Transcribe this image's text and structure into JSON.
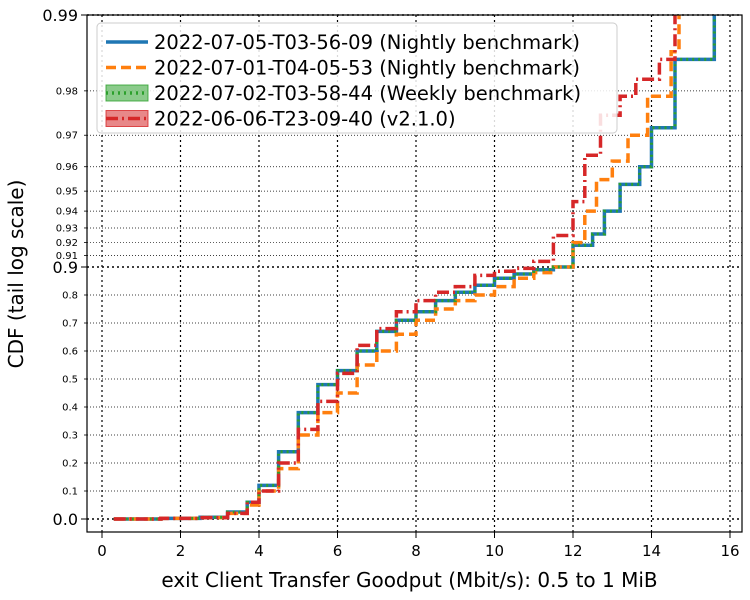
{
  "chart_data": {
    "type": "line",
    "xlabel": "exit Client Transfer Goodput (Mbit/s): 0.5 to 1 MiB",
    "ylabel": "CDF (tail log scale)",
    "xlim": [
      -0.4,
      16.1
    ],
    "x_ticks": [
      0,
      2,
      4,
      6,
      8,
      10,
      12,
      14,
      16
    ],
    "y_scale": "tail-log",
    "y_major_ticks": [
      {
        "v": 0.0,
        "label": "0.0"
      },
      {
        "v": 0.9,
        "label": "0.9"
      },
      {
        "v": 0.99,
        "label": "0.99"
      }
    ],
    "y_minor_ticks": [
      {
        "v": 0.1,
        "label": "0.1"
      },
      {
        "v": 0.2,
        "label": "0.2"
      },
      {
        "v": 0.3,
        "label": "0.3"
      },
      {
        "v": 0.4,
        "label": "0.4"
      },
      {
        "v": 0.5,
        "label": "0.5"
      },
      {
        "v": 0.6,
        "label": "0.6"
      },
      {
        "v": 0.7,
        "label": "0.7"
      },
      {
        "v": 0.8,
        "label": "0.8"
      },
      {
        "v": 0.91,
        "label": "0.91"
      },
      {
        "v": 0.92,
        "label": "0.92"
      },
      {
        "v": 0.93,
        "label": "0.93"
      },
      {
        "v": 0.94,
        "label": "0.94"
      },
      {
        "v": 0.95,
        "label": "0.95"
      },
      {
        "v": 0.96,
        "label": "0.96"
      },
      {
        "v": 0.97,
        "label": "0.97"
      },
      {
        "v": 0.98,
        "label": "0.98"
      }
    ],
    "grid": true,
    "legend_position": "top-left",
    "series": [
      {
        "name": "2022-07-05-T03-56-09 (Nightly benchmark)",
        "color": "#1f77b4",
        "style": "solid",
        "points": [
          [
            0.3,
            0.0
          ],
          [
            1.5,
            0.002
          ],
          [
            2.5,
            0.006
          ],
          [
            3.2,
            0.025
          ],
          [
            3.7,
            0.06
          ],
          [
            4.0,
            0.12
          ],
          [
            4.5,
            0.24
          ],
          [
            5.0,
            0.38
          ],
          [
            5.5,
            0.48
          ],
          [
            6.0,
            0.53
          ],
          [
            6.5,
            0.6
          ],
          [
            7.0,
            0.67
          ],
          [
            7.5,
            0.71
          ],
          [
            8.0,
            0.74
          ],
          [
            8.5,
            0.78
          ],
          [
            9.0,
            0.81
          ],
          [
            9.5,
            0.835
          ],
          [
            10.0,
            0.86
          ],
          [
            10.5,
            0.875
          ],
          [
            11.0,
            0.89
          ],
          [
            11.5,
            0.9
          ],
          [
            12.0,
            0.918
          ],
          [
            12.5,
            0.926
          ],
          [
            12.8,
            0.94
          ],
          [
            13.2,
            0.953
          ],
          [
            13.7,
            0.96
          ],
          [
            14.0,
            0.972
          ],
          [
            14.6,
            0.985
          ],
          [
            15.6,
            0.99
          ]
        ]
      },
      {
        "name": "2022-07-01-T04-05-53 (Nightly benchmark)",
        "color": "#ff7f0e",
        "style": "dashed",
        "points": [
          [
            0.3,
            0.0
          ],
          [
            1.5,
            0.002
          ],
          [
            2.5,
            0.005
          ],
          [
            3.2,
            0.02
          ],
          [
            3.7,
            0.05
          ],
          [
            4.0,
            0.1
          ],
          [
            4.5,
            0.18
          ],
          [
            5.0,
            0.3
          ],
          [
            5.5,
            0.38
          ],
          [
            6.0,
            0.45
          ],
          [
            6.5,
            0.55
          ],
          [
            7.0,
            0.6
          ],
          [
            7.5,
            0.66
          ],
          [
            8.0,
            0.71
          ],
          [
            8.5,
            0.75
          ],
          [
            9.0,
            0.78
          ],
          [
            9.5,
            0.8
          ],
          [
            10.0,
            0.83
          ],
          [
            10.5,
            0.86
          ],
          [
            11.0,
            0.88
          ],
          [
            11.5,
            0.9
          ],
          [
            12.0,
            0.92
          ],
          [
            12.3,
            0.94
          ],
          [
            12.6,
            0.955
          ],
          [
            13.0,
            0.962
          ],
          [
            13.4,
            0.97
          ],
          [
            13.9,
            0.979
          ],
          [
            14.5,
            0.986
          ],
          [
            14.7,
            0.99
          ]
        ]
      },
      {
        "name": "2022-07-02-T03-58-44 (Weekly benchmark)",
        "color": "#2ca02c",
        "style": "dotted",
        "points": [
          [
            0.3,
            0.0
          ],
          [
            1.5,
            0.002
          ],
          [
            2.5,
            0.006
          ],
          [
            3.2,
            0.025
          ],
          [
            3.7,
            0.06
          ],
          [
            4.0,
            0.12
          ],
          [
            4.5,
            0.24
          ],
          [
            5.0,
            0.38
          ],
          [
            5.5,
            0.48
          ],
          [
            6.0,
            0.53
          ],
          [
            6.5,
            0.6
          ],
          [
            7.0,
            0.67
          ],
          [
            7.5,
            0.71
          ],
          [
            8.0,
            0.74
          ],
          [
            8.5,
            0.78
          ],
          [
            9.0,
            0.81
          ],
          [
            9.5,
            0.835
          ],
          [
            10.0,
            0.86
          ],
          [
            10.5,
            0.875
          ],
          [
            11.0,
            0.89
          ],
          [
            11.5,
            0.9
          ],
          [
            12.0,
            0.918
          ],
          [
            12.5,
            0.926
          ],
          [
            12.8,
            0.94
          ],
          [
            13.2,
            0.953
          ],
          [
            13.7,
            0.96
          ],
          [
            14.0,
            0.972
          ],
          [
            14.6,
            0.985
          ],
          [
            15.6,
            0.99
          ]
        ]
      },
      {
        "name": "2022-06-06-T23-09-40 (v2.1.0)",
        "color": "#d62728",
        "style": "dashdot",
        "points": [
          [
            0.3,
            0.0
          ],
          [
            1.5,
            0.002
          ],
          [
            2.5,
            0.005
          ],
          [
            3.2,
            0.02
          ],
          [
            3.7,
            0.06
          ],
          [
            4.0,
            0.1
          ],
          [
            4.5,
            0.2
          ],
          [
            5.0,
            0.32
          ],
          [
            5.5,
            0.42
          ],
          [
            6.0,
            0.52
          ],
          [
            6.5,
            0.62
          ],
          [
            7.0,
            0.68
          ],
          [
            7.5,
            0.74
          ],
          [
            8.0,
            0.78
          ],
          [
            8.5,
            0.81
          ],
          [
            9.0,
            0.83
          ],
          [
            9.5,
            0.87
          ],
          [
            10.0,
            0.885
          ],
          [
            10.5,
            0.895
          ],
          [
            11.0,
            0.905
          ],
          [
            11.5,
            0.925
          ],
          [
            12.0,
            0.945
          ],
          [
            12.3,
            0.964
          ],
          [
            12.7,
            0.975
          ],
          [
            13.2,
            0.979
          ],
          [
            13.6,
            0.982
          ],
          [
            14.2,
            0.985
          ],
          [
            14.6,
            0.99
          ]
        ]
      }
    ]
  }
}
